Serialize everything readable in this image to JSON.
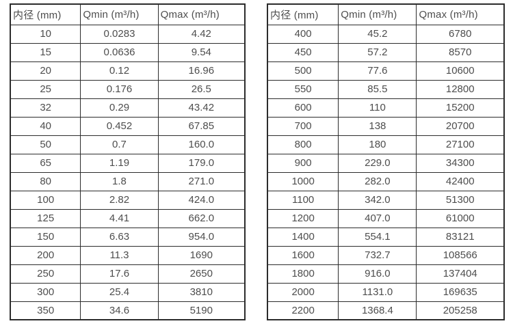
{
  "tables": [
    {
      "title": "small-diameter-flow-range",
      "headers": [
        "内径 (mm)",
        "Qmin (m³/h)",
        "Qmax (m³/h)"
      ],
      "rows": [
        [
          "10",
          "0.0283",
          "4.42"
        ],
        [
          "15",
          "0.0636",
          "9.54"
        ],
        [
          "20",
          "0.12",
          "16.96"
        ],
        [
          "25",
          "0.176",
          "26.5"
        ],
        [
          "32",
          "0.29",
          "43.42"
        ],
        [
          "40",
          "0.452",
          "67.85"
        ],
        [
          "50",
          "0.7",
          "160.0"
        ],
        [
          "65",
          "1.19",
          "179.0"
        ],
        [
          "80",
          "1.8",
          "271.0"
        ],
        [
          "100",
          "2.82",
          "424.0"
        ],
        [
          "125",
          "4.41",
          "662.0"
        ],
        [
          "150",
          "6.63",
          "954.0"
        ],
        [
          "200",
          "11.3",
          "1690"
        ],
        [
          "250",
          "17.6",
          "2650"
        ],
        [
          "300",
          "25.4",
          "3810"
        ],
        [
          "350",
          "34.6",
          "5190"
        ]
      ]
    },
    {
      "title": "large-diameter-flow-range",
      "headers": [
        "内径 (mm)",
        "Qmin (m³/h)",
        "Qmax (m³/h)"
      ],
      "rows": [
        [
          "400",
          "45.2",
          "6780"
        ],
        [
          "450",
          "57.2",
          "8570"
        ],
        [
          "500",
          "77.6",
          "10600"
        ],
        [
          "550",
          "85.5",
          "12800"
        ],
        [
          "600",
          "110",
          "15200"
        ],
        [
          "700",
          "138",
          "20700"
        ],
        [
          "800",
          "180",
          "27100"
        ],
        [
          "900",
          "229.0",
          "34300"
        ],
        [
          "1000",
          "282.0",
          "42400"
        ],
        [
          "1100",
          "342.0",
          "51300"
        ],
        [
          "1200",
          "407.0",
          "61000"
        ],
        [
          "1400",
          "554.1",
          "83121"
        ],
        [
          "1600",
          "732.7",
          "108566"
        ],
        [
          "1800",
          "916.0",
          "137404"
        ],
        [
          "2000",
          "1131.0",
          "169635"
        ],
        [
          "2200",
          "1368.4",
          "205258"
        ]
      ]
    }
  ],
  "colors": {
    "border": "#2b2b2b",
    "text": "#4d4d4d",
    "background": "#ffffff"
  }
}
